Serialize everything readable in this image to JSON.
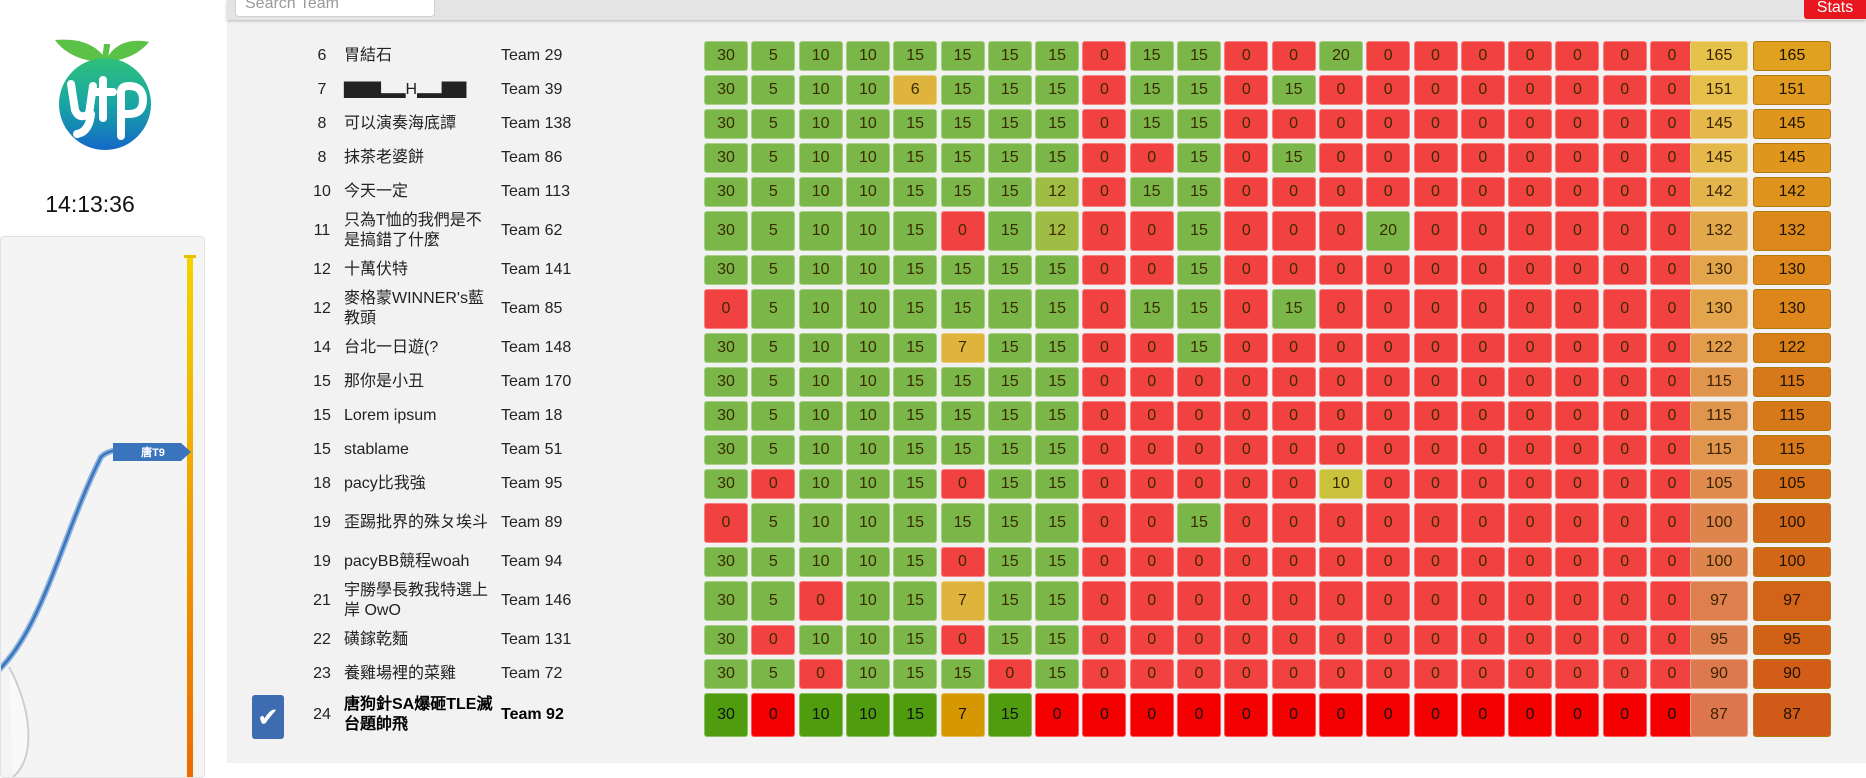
{
  "clock": "14:13:36",
  "search": {
    "placeholder": "Search Team"
  },
  "stats_button": "Stats",
  "chart": {
    "label": "唐T9"
  },
  "colors": {
    "full": "#7ab648",
    "partial": "#dfb43c",
    "partial_green": "#9fbc44",
    "partial_olive": "#c9c23a",
    "zero": "#f24141",
    "mine_full": "#4f9d0f",
    "mine_partial": "#d59800",
    "mine_zero": "#f50000",
    "check": "#3d6cb0"
  },
  "rows": [
    {
      "rank": "6",
      "name": "胃結石",
      "team": "Team 29",
      "scores": [
        30,
        5,
        10,
        10,
        15,
        15,
        15,
        15,
        0,
        15,
        15,
        0,
        0,
        20,
        0,
        0,
        0,
        0,
        0,
        0,
        0
      ],
      "total": 165,
      "total2": 165
    },
    {
      "rank": "7",
      "name": "▇▇▇▂▂H▂▂▇▇",
      "team": "Team 39",
      "scores": [
        30,
        5,
        10,
        10,
        6,
        15,
        15,
        15,
        0,
        15,
        15,
        0,
        15,
        0,
        0,
        0,
        0,
        0,
        0,
        0,
        0
      ],
      "total": 151,
      "total2": 151
    },
    {
      "rank": "8",
      "name": "可以演奏海底譚",
      "team": "Team 138",
      "scores": [
        30,
        5,
        10,
        10,
        15,
        15,
        15,
        15,
        0,
        15,
        15,
        0,
        0,
        0,
        0,
        0,
        0,
        0,
        0,
        0,
        0
      ],
      "total": 145,
      "total2": 145
    },
    {
      "rank": "8",
      "name": "抹茶老婆餅",
      "team": "Team 86",
      "scores": [
        30,
        5,
        10,
        10,
        15,
        15,
        15,
        15,
        0,
        0,
        15,
        0,
        15,
        0,
        0,
        0,
        0,
        0,
        0,
        0,
        0
      ],
      "total": 145,
      "total2": 145
    },
    {
      "rank": "10",
      "name": "今天一定",
      "team": "Team 113",
      "scores": [
        30,
        5,
        10,
        10,
        15,
        15,
        15,
        12,
        0,
        15,
        15,
        0,
        0,
        0,
        0,
        0,
        0,
        0,
        0,
        0,
        0
      ],
      "total": 142,
      "total2": 142
    },
    {
      "rank": "11",
      "name": "只為T恤的我們是不是搞錯了什麼",
      "team": "Team 62",
      "scores": [
        30,
        5,
        10,
        10,
        15,
        0,
        15,
        12,
        0,
        0,
        15,
        0,
        0,
        0,
        20,
        0,
        0,
        0,
        0,
        0,
        0
      ],
      "total": 132,
      "total2": 132
    },
    {
      "rank": "12",
      "name": "十萬伏特",
      "team": "Team 141",
      "scores": [
        30,
        5,
        10,
        10,
        15,
        15,
        15,
        15,
        0,
        0,
        15,
        0,
        0,
        0,
        0,
        0,
        0,
        0,
        0,
        0,
        0
      ],
      "total": 130,
      "total2": 130
    },
    {
      "rank": "12",
      "name": "麥格蒙WINNER's藍教頭",
      "team": "Team 85",
      "scores": [
        0,
        5,
        10,
        10,
        15,
        15,
        15,
        15,
        0,
        15,
        15,
        0,
        15,
        0,
        0,
        0,
        0,
        0,
        0,
        0,
        0
      ],
      "total": 130,
      "total2": 130
    },
    {
      "rank": "14",
      "name": "台北一日遊(?",
      "team": "Team 148",
      "scores": [
        30,
        5,
        10,
        10,
        15,
        7,
        15,
        15,
        0,
        0,
        15,
        0,
        0,
        0,
        0,
        0,
        0,
        0,
        0,
        0,
        0
      ],
      "total": 122,
      "total2": 122
    },
    {
      "rank": "15",
      "name": "那你是小丑",
      "team": "Team 170",
      "scores": [
        30,
        5,
        10,
        10,
        15,
        15,
        15,
        15,
        0,
        0,
        0,
        0,
        0,
        0,
        0,
        0,
        0,
        0,
        0,
        0,
        0
      ],
      "total": 115,
      "total2": 115
    },
    {
      "rank": "15",
      "name": "Lorem ipsum",
      "team": "Team 18",
      "scores": [
        30,
        5,
        10,
        10,
        15,
        15,
        15,
        15,
        0,
        0,
        0,
        0,
        0,
        0,
        0,
        0,
        0,
        0,
        0,
        0,
        0
      ],
      "total": 115,
      "total2": 115
    },
    {
      "rank": "15",
      "name": "stablame",
      "team": "Team 51",
      "scores": [
        30,
        5,
        10,
        10,
        15,
        15,
        15,
        15,
        0,
        0,
        0,
        0,
        0,
        0,
        0,
        0,
        0,
        0,
        0,
        0,
        0
      ],
      "total": 115,
      "total2": 115
    },
    {
      "rank": "18",
      "name": "pacy比我強",
      "team": "Team 95",
      "scores": [
        30,
        0,
        10,
        10,
        15,
        0,
        15,
        15,
        0,
        0,
        0,
        0,
        0,
        10,
        0,
        0,
        0,
        0,
        0,
        0,
        0
      ],
      "total": 105,
      "total2": 105
    },
    {
      "rank": "19",
      "name": "歪踢批界的殊ㄆ埃斗",
      "team": "Team 89",
      "scores": [
        0,
        5,
        10,
        10,
        15,
        15,
        15,
        15,
        0,
        0,
        15,
        0,
        0,
        0,
        0,
        0,
        0,
        0,
        0,
        0,
        0
      ],
      "total": 100,
      "total2": 100
    },
    {
      "rank": "19",
      "name": "pacyBB競程woah",
      "team": "Team 94",
      "scores": [
        30,
        5,
        10,
        10,
        15,
        0,
        15,
        15,
        0,
        0,
        0,
        0,
        0,
        0,
        0,
        0,
        0,
        0,
        0,
        0,
        0
      ],
      "total": 100,
      "total2": 100
    },
    {
      "rank": "21",
      "name": "宇勝學長教我特選上岸 OwO",
      "team": "Team 146",
      "scores": [
        30,
        5,
        0,
        10,
        15,
        7,
        15,
        15,
        0,
        0,
        0,
        0,
        0,
        0,
        0,
        0,
        0,
        0,
        0,
        0,
        0
      ],
      "total": 97,
      "total2": 97
    },
    {
      "rank": "22",
      "name": "磺鎵乾麵",
      "team": "Team 131",
      "scores": [
        30,
        0,
        10,
        10,
        15,
        0,
        15,
        15,
        0,
        0,
        0,
        0,
        0,
        0,
        0,
        0,
        0,
        0,
        0,
        0,
        0
      ],
      "total": 95,
      "total2": 95
    },
    {
      "rank": "23",
      "name": "養雞場裡的菜雞",
      "team": "Team 72",
      "scores": [
        30,
        5,
        0,
        10,
        15,
        15,
        0,
        15,
        0,
        0,
        0,
        0,
        0,
        0,
        0,
        0,
        0,
        0,
        0,
        0,
        0
      ],
      "total": 90,
      "total2": 90
    },
    {
      "rank": "24",
      "name": "唐狗針SA爆砸TLE滅台題帥飛",
      "team": "Team 92",
      "scores": [
        30,
        0,
        10,
        10,
        15,
        7,
        15,
        0,
        0,
        0,
        0,
        0,
        0,
        0,
        0,
        0,
        0,
        0,
        0,
        0,
        0
      ],
      "total": 87,
      "total2": 87,
      "mine": true
    }
  ]
}
